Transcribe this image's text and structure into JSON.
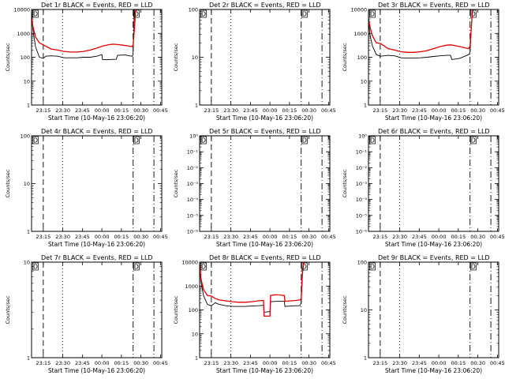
{
  "chart_data": [
    {
      "type": "line",
      "title": "Det 1r BLACK = Events, RED = LLD",
      "xlabel": "Start Time (10-May-16 23:06:20)",
      "ylabel": "Counts/sec",
      "x_ticks": [
        "23:15",
        "23:30",
        "23:45",
        "00:00",
        "00:15",
        "00:30",
        "00:45"
      ],
      "y_ticks": [
        "1",
        "10",
        "100",
        "1000",
        "10000"
      ],
      "yscale": "log",
      "ylim": [
        1,
        10000
      ],
      "xlim_minutes": [
        0,
        100
      ],
      "vlines": [
        {
          "x": 9,
          "style": "dashed"
        },
        {
          "x": 24,
          "style": "dotted"
        },
        {
          "x": 78,
          "style": "dashdot"
        },
        {
          "x": 94,
          "style": "dashdot"
        }
      ],
      "markers": [
        {
          "label": "D",
          "x": 1.5
        },
        {
          "label": "D",
          "x": 79
        }
      ],
      "series": [
        {
          "color": "#000000",
          "points": [
            [
              0,
              10000
            ],
            [
              1,
              1500
            ],
            [
              3,
              280
            ],
            [
              6,
              100
            ],
            [
              9,
              90
            ],
            [
              11,
              110
            ],
            [
              15,
              115
            ],
            [
              20,
              110
            ],
            [
              25,
              95
            ],
            [
              30,
              95
            ],
            [
              35,
              95
            ],
            [
              40,
              100
            ],
            [
              45,
              100
            ],
            [
              50,
              110
            ],
            [
              54,
              130
            ],
            [
              54.5,
              80
            ],
            [
              60,
              80
            ],
            [
              65,
              82
            ],
            [
              66,
              120
            ],
            [
              72,
              125
            ],
            [
              75,
              115
            ],
            [
              77.5,
              110
            ],
            [
              78,
              150
            ],
            [
              79,
              10000
            ]
          ]
        },
        {
          "color": "#e00000",
          "points": [
            [
              0,
              4500
            ],
            [
              1,
              2000
            ],
            [
              3,
              700
            ],
            [
              6,
              400
            ],
            [
              9,
              330
            ],
            [
              12,
              270
            ],
            [
              15,
              220
            ],
            [
              20,
              200
            ],
            [
              25,
              175
            ],
            [
              30,
              165
            ],
            [
              35,
              165
            ],
            [
              40,
              175
            ],
            [
              45,
              200
            ],
            [
              50,
              240
            ],
            [
              55,
              300
            ],
            [
              60,
              340
            ],
            [
              63,
              350
            ],
            [
              66,
              340
            ],
            [
              70,
              320
            ],
            [
              74,
              300
            ],
            [
              77,
              280
            ],
            [
              78,
              320
            ],
            [
              79,
              1500
            ],
            [
              80,
              10000
            ]
          ]
        }
      ]
    },
    {
      "type": "line",
      "title": "Det 2r BLACK = Events, RED = LLD",
      "xlabel": "Start Time (10-May-16 23:06:20)",
      "ylabel": "Counts/sec",
      "x_ticks": [
        "23:15",
        "23:30",
        "23:45",
        "00:00",
        "00:15",
        "00:30",
        "00:45"
      ],
      "y_ticks": [
        "1",
        "10",
        "100"
      ],
      "yscale": "log",
      "ylim": [
        1,
        100
      ],
      "xlim_minutes": [
        0,
        100
      ],
      "vlines": [
        {
          "x": 9,
          "style": "dashed"
        },
        {
          "x": 24,
          "style": "dotted"
        },
        {
          "x": 78,
          "style": "dashdot"
        },
        {
          "x": 94,
          "style": "dashdot"
        }
      ],
      "markers": [
        {
          "label": "D",
          "x": 1.5
        },
        {
          "label": "D",
          "x": 79
        }
      ],
      "series": []
    },
    {
      "type": "line",
      "title": "Det 3r BLACK = Events, RED = LLD",
      "xlabel": "Start Time (10-May-16 23:06:20)",
      "ylabel": "Counts/sec",
      "x_ticks": [
        "23:15",
        "23:30",
        "23:45",
        "00:00",
        "00:15",
        "00:30",
        "00:45"
      ],
      "y_ticks": [
        "1",
        "10",
        "100",
        "1000",
        "10000"
      ],
      "yscale": "log",
      "ylim": [
        1,
        10000
      ],
      "xlim_minutes": [
        0,
        100
      ],
      "vlines": [
        {
          "x": 9,
          "style": "dashed"
        },
        {
          "x": 24,
          "style": "dotted"
        },
        {
          "x": 78,
          "style": "dashdot"
        },
        {
          "x": 94,
          "style": "dashdot"
        }
      ],
      "markers": [
        {
          "label": "D",
          "x": 1.5
        },
        {
          "label": "D",
          "x": 79
        }
      ],
      "series": [
        {
          "color": "#000000",
          "points": [
            [
              0,
              4000
            ],
            [
              1,
              1000
            ],
            [
              3,
              300
            ],
            [
              6,
              130
            ],
            [
              9,
              110
            ],
            [
              12,
              115
            ],
            [
              15,
              120
            ],
            [
              20,
              115
            ],
            [
              25,
              95
            ],
            [
              30,
              92
            ],
            [
              35,
              92
            ],
            [
              40,
              95
            ],
            [
              45,
              100
            ],
            [
              50,
              108
            ],
            [
              55,
              115
            ],
            [
              60,
              120
            ],
            [
              63,
              120
            ],
            [
              64,
              80
            ],
            [
              70,
              90
            ],
            [
              74,
              110
            ],
            [
              77,
              130
            ],
            [
              78,
              160
            ],
            [
              79,
              2000
            ],
            [
              80,
              10000
            ]
          ]
        },
        {
          "color": "#e00000",
          "points": [
            [
              0,
              4500
            ],
            [
              1,
              2000
            ],
            [
              3,
              800
            ],
            [
              6,
              400
            ],
            [
              9,
              380
            ],
            [
              12,
              300
            ],
            [
              15,
              230
            ],
            [
              20,
              200
            ],
            [
              25,
              170
            ],
            [
              30,
              160
            ],
            [
              35,
              160
            ],
            [
              40,
              170
            ],
            [
              45,
              190
            ],
            [
              50,
              230
            ],
            [
              55,
              280
            ],
            [
              60,
              320
            ],
            [
              63,
              330
            ],
            [
              66,
              310
            ],
            [
              70,
              280
            ],
            [
              74,
              250
            ],
            [
              77,
              230
            ],
            [
              78,
              300
            ],
            [
              79,
              2000
            ],
            [
              80,
              10000
            ]
          ]
        }
      ]
    },
    {
      "type": "line",
      "title": "Det 4r BLACK = Events, RED = LLD",
      "xlabel": "Start Time (10-May-16 23:06:20)",
      "ylabel": "Counts/sec",
      "x_ticks": [
        "23:15",
        "23:30",
        "23:45",
        "00:00",
        "00:15",
        "00:30",
        "00:45"
      ],
      "y_ticks": [
        "1",
        "10",
        "100"
      ],
      "yscale": "log",
      "ylim": [
        1,
        100
      ],
      "xlim_minutes": [
        0,
        100
      ],
      "vlines": [
        {
          "x": 9,
          "style": "dashed"
        },
        {
          "x": 24,
          "style": "dotted"
        },
        {
          "x": 78,
          "style": "dashdot"
        },
        {
          "x": 94,
          "style": "dashdot"
        }
      ],
      "markers": [
        {
          "label": "D",
          "x": 1.5
        },
        {
          "label": "D",
          "x": 79
        }
      ],
      "series": []
    },
    {
      "type": "line",
      "title": "Det 5r BLACK = Events, RED = LLD",
      "xlabel": "Start Time (10-May-16 23:06:20)",
      "ylabel": "Counts/sec",
      "x_ticks": [
        "23:15",
        "23:30",
        "23:45",
        "00:00",
        "00:15",
        "00:30",
        "00:45"
      ],
      "y_ticks": [
        "10⁰",
        "10⁻¹",
        "10⁻²",
        "10⁻³",
        "10⁻⁴",
        "10⁻⁵",
        "10⁻⁶"
      ],
      "yscale": "log",
      "ylim": [
        1e-06,
        1
      ],
      "xlim_minutes": [
        0,
        100
      ],
      "vlines": [
        {
          "x": 9,
          "style": "dashed"
        },
        {
          "x": 24,
          "style": "dotted"
        },
        {
          "x": 78,
          "style": "dashdot"
        },
        {
          "x": 94,
          "style": "dashdot"
        }
      ],
      "markers": [
        {
          "label": "D",
          "x": 1.5
        },
        {
          "label": "D",
          "x": 79
        }
      ],
      "series": []
    },
    {
      "type": "line",
      "title": "Det 6r BLACK = Events, RED = LLD",
      "xlabel": "Start Time (10-May-16 23:06:20)",
      "ylabel": "Counts/sec",
      "x_ticks": [
        "23:15",
        "23:30",
        "23:45",
        "00:00",
        "00:15",
        "00:30",
        "00:45"
      ],
      "y_ticks": [
        "10⁰",
        "10⁻¹",
        "10⁻²",
        "10⁻³",
        "10⁻⁴",
        "10⁻⁵",
        "10⁻⁶"
      ],
      "yscale": "log",
      "ylim": [
        1e-06,
        1
      ],
      "xlim_minutes": [
        0,
        100
      ],
      "vlines": [
        {
          "x": 9,
          "style": "dashed"
        },
        {
          "x": 24,
          "style": "dotted"
        },
        {
          "x": 78,
          "style": "dashdot"
        },
        {
          "x": 94,
          "style": "dashdot"
        }
      ],
      "markers": [
        {
          "label": "D",
          "x": 1.5
        },
        {
          "label": "D",
          "x": 79
        }
      ],
      "series": []
    },
    {
      "type": "line",
      "title": "Det 7r BLACK = Events, RED = LLD",
      "xlabel": "Start Time (10-May-16 23:06:20)",
      "ylabel": "Counts/sec",
      "x_ticks": [
        "23:15",
        "23:30",
        "23:45",
        "00:00",
        "00:15",
        "00:30",
        "00:45"
      ],
      "y_ticks": [
        "1",
        "10"
      ],
      "yscale": "log",
      "ylim": [
        1,
        10
      ],
      "xlim_minutes": [
        0,
        100
      ],
      "vlines": [
        {
          "x": 9,
          "style": "dashed"
        },
        {
          "x": 24,
          "style": "dotted"
        },
        {
          "x": 78,
          "style": "dashdot"
        },
        {
          "x": 94,
          "style": "dashdot"
        }
      ],
      "markers": [
        {
          "label": "D",
          "x": 1.5
        },
        {
          "label": "D",
          "x": 79
        }
      ],
      "series": []
    },
    {
      "type": "line",
      "title": "Det 8r BLACK = Events, RED = LLD",
      "xlabel": "Start Time (10-May-16 23:06:20)",
      "ylabel": "Counts/sec",
      "x_ticks": [
        "23:15",
        "23:30",
        "23:45",
        "00:00",
        "00:15",
        "00:30",
        "00:45"
      ],
      "y_ticks": [
        "1",
        "10",
        "100",
        "1000",
        "10000"
      ],
      "yscale": "log",
      "ylim": [
        1,
        10000
      ],
      "xlim_minutes": [
        0,
        100
      ],
      "vlines": [
        {
          "x": 9,
          "style": "dashed"
        },
        {
          "x": 24,
          "style": "dotted"
        },
        {
          "x": 78,
          "style": "dashdot"
        },
        {
          "x": 94,
          "style": "dashdot"
        }
      ],
      "markers": [
        {
          "label": "D",
          "x": 1.5
        },
        {
          "label": "D",
          "x": 79
        }
      ],
      "series": [
        {
          "color": "#000000",
          "points": [
            [
              0,
              6000
            ],
            [
              1,
              1500
            ],
            [
              3,
              400
            ],
            [
              6,
              170
            ],
            [
              9,
              150
            ],
            [
              12,
              200
            ],
            [
              15,
              170
            ],
            [
              20,
              150
            ],
            [
              25,
              140
            ],
            [
              30,
              140
            ],
            [
              35,
              140
            ],
            [
              40,
              145
            ],
            [
              45,
              150
            ],
            [
              49,
              155
            ],
            [
              49.5,
              80
            ],
            [
              54,
              85
            ],
            [
              54.5,
              220
            ],
            [
              60,
              230
            ],
            [
              65,
              230
            ],
            [
              65.5,
              140
            ],
            [
              70,
              145
            ],
            [
              74,
              150
            ],
            [
              77,
              150
            ],
            [
              78,
              200
            ],
            [
              79,
              3000
            ],
            [
              80,
              10000
            ]
          ]
        },
        {
          "color": "#e00000",
          "points": [
            [
              0,
              8000
            ],
            [
              1,
              2000
            ],
            [
              3,
              700
            ],
            [
              6,
              400
            ],
            [
              9,
              380
            ],
            [
              12,
              300
            ],
            [
              15,
              260
            ],
            [
              20,
              240
            ],
            [
              25,
              220
            ],
            [
              30,
              210
            ],
            [
              35,
              210
            ],
            [
              40,
              220
            ],
            [
              45,
              240
            ],
            [
              49,
              250
            ],
            [
              49.5,
              55
            ],
            [
              54,
              55
            ],
            [
              54.5,
              400
            ],
            [
              58,
              430
            ],
            [
              62,
              420
            ],
            [
              65,
              400
            ],
            [
              65.5,
              230
            ],
            [
              70,
              240
            ],
            [
              74,
              250
            ],
            [
              77,
              260
            ],
            [
              78,
              300
            ],
            [
              79,
              5000
            ],
            [
              80,
              10000
            ]
          ]
        }
      ]
    },
    {
      "type": "line",
      "title": "Det 9r BLACK = Events, RED = LLD",
      "xlabel": "Start Time (10-May-16 23:06:20)",
      "ylabel": "Counts/sec",
      "x_ticks": [
        "23:15",
        "23:30",
        "23:45",
        "00:00",
        "00:15",
        "00:30",
        "00:45"
      ],
      "y_ticks": [
        "1",
        "10",
        "100"
      ],
      "yscale": "log",
      "ylim": [
        1,
        100
      ],
      "xlim_minutes": [
        0,
        100
      ],
      "vlines": [
        {
          "x": 9,
          "style": "dashed"
        },
        {
          "x": 24,
          "style": "dotted"
        },
        {
          "x": 78,
          "style": "dashdot"
        },
        {
          "x": 94,
          "style": "dashdot"
        }
      ],
      "markers": [
        {
          "label": "D",
          "x": 1.5
        },
        {
          "label": "D",
          "x": 79
        }
      ],
      "series": []
    }
  ]
}
